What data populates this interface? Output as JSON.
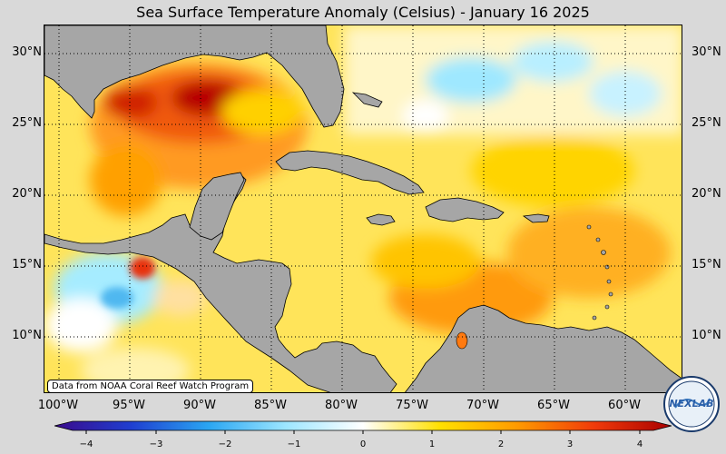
{
  "title": "Sea Surface Temperature Anomaly (Celsius) - January 16 2025",
  "credit": "Data from NOAA Coral Reef Watch Program",
  "latitude_labels": [
    "30°N",
    "25°N",
    "20°N",
    "15°N",
    "10°N"
  ],
  "longitude_labels": [
    "100°W",
    "95°W",
    "90°W",
    "85°W",
    "80°W",
    "75°W",
    "70°W",
    "65°W",
    "60°W"
  ],
  "colorbar": {
    "min": -4,
    "max": 4,
    "ticks": [
      "−4",
      "−3",
      "−2",
      "−1",
      "0",
      "1",
      "2",
      "3",
      "4"
    ],
    "colors": [
      "#3a0a8c",
      "#1f3fd0",
      "#2aa6f2",
      "#9de6ff",
      "#ffffff",
      "#ffe000",
      "#ff9a00",
      "#f03a0a",
      "#a80000"
    ]
  },
  "logo": {
    "text": "NEXLAB"
  },
  "map": {
    "land_color": "#a6a6a6",
    "grid": "dotted"
  }
}
